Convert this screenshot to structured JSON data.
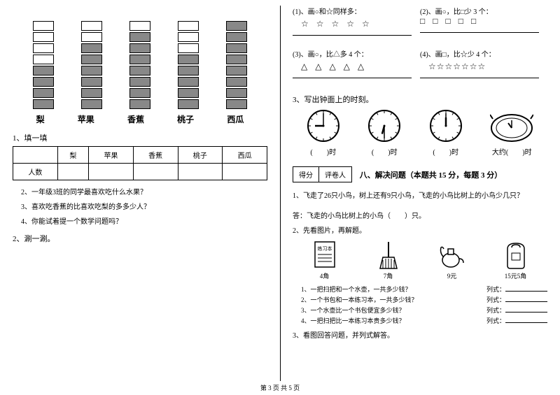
{
  "left": {
    "chart": {
      "categories": [
        "梨",
        "苹果",
        "香蕉",
        "桃子",
        "西瓜"
      ],
      "filled": [
        4,
        6,
        7,
        5,
        8
      ],
      "total_blocks": 8,
      "fill_color": "#888888",
      "empty_color": "#ffffff",
      "border_color": "#000000"
    },
    "q1_title": "1、填一填",
    "table": {
      "row_label": "人数",
      "headers": [
        "",
        "梨",
        "苹果",
        "香蕉",
        "桃子",
        "西瓜"
      ]
    },
    "q2": "2、一年级3班的同学最喜欢吃什么水果？",
    "q3": "3、喜欢吃香蕉的比喜欢吃梨的多多少人？",
    "q4": "4、你能试着提一个数学问题吗？",
    "q2_outer": "2、涮一涮。"
  },
  "right": {
    "r1": {
      "a_label": "(1)、画○和☆同样多：",
      "a_shapes": "☆ ☆ ☆ ☆ ☆",
      "b_label": "(2)、画○，比□少 3 个：",
      "b_shapes": "□ □ □ □ □"
    },
    "r2": {
      "a_label": "(3)、画○，比△多 4 个：",
      "a_shapes": "△ △ △ △ △",
      "b_label": "(4)、画□，比☆少 4 个：",
      "b_shapes": "☆☆☆☆☆☆☆"
    },
    "q3_title": "3、写出钟面上的时刻。",
    "clocks": [
      {
        "hour": 9,
        "min": 0,
        "label": "(　　)时"
      },
      {
        "hour": 6,
        "min": 30,
        "label": "(　　)时"
      },
      {
        "hour": 12,
        "min": 0,
        "label": "(　　)时"
      },
      {
        "hour": 11,
        "min": 0,
        "label": "大约(　　)时",
        "oval": true
      }
    ],
    "score": {
      "a": "得分",
      "b": "评卷人"
    },
    "section8": "八、解决问题（本题共 15 分，每题 3 分）",
    "p1": "1、飞走了26只小鸟，树上还有9只小鸟，飞走的小鸟比树上的小鸟少几只？",
    "p1_ans": "答：飞走的小鸟比树上的小鸟（　　）只。",
    "p2_title": "2、先看图片，再解题。",
    "items": [
      {
        "name": "练习本",
        "price": "4角"
      },
      {
        "name": "扫把",
        "price": "7角"
      },
      {
        "name": "水壶",
        "price": "9元"
      },
      {
        "name": "书包",
        "price": "15元5角"
      }
    ],
    "subq": [
      "1、一把扫把和一个水壶，一共多少钱？",
      "2、一个书包和一本练习本，一共多少钱？",
      "3、一个水壶比一个书包便宜多少钱？",
      "4、一把扫把比一本练习本贵多少钱？"
    ],
    "lieshi": "列式：",
    "p3": "3、看图回答问题，并列式解答。"
  },
  "footer": "第 3 页 共 5 页"
}
